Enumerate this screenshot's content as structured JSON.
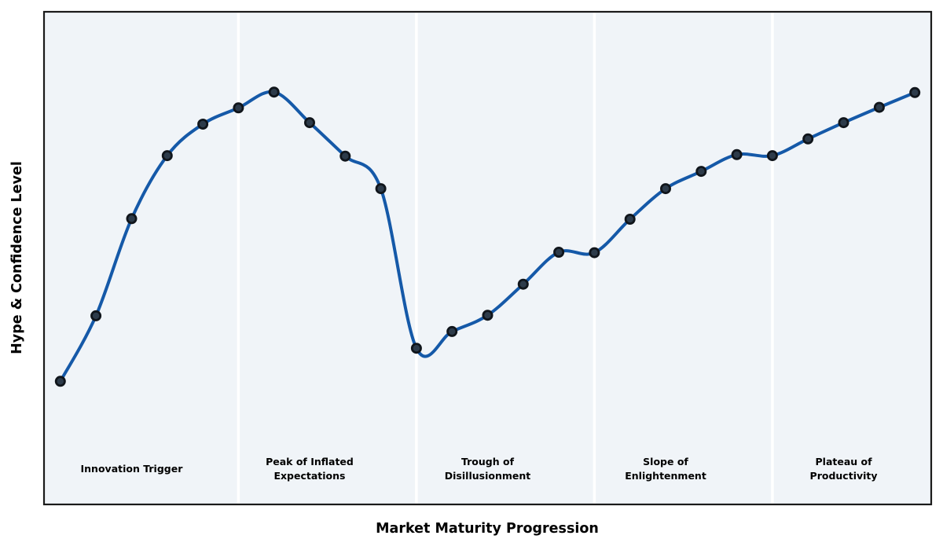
{
  "chart_data": {
    "type": "line",
    "title": "",
    "xlabel": "Market Maturity Progression",
    "ylabel": "Hype & Confidence Level",
    "x": [
      0,
      1,
      2,
      3,
      4,
      5,
      6,
      7,
      8,
      9,
      10,
      11,
      12,
      13,
      14,
      15,
      16,
      17,
      18,
      19,
      20,
      21,
      22,
      23,
      24
    ],
    "values": [
      25,
      38.3,
      58,
      70.8,
      77.2,
      80.5,
      83.7,
      77.5,
      70.7,
      64.1,
      31.7,
      35.1,
      38.4,
      44.7,
      51.2,
      51.1,
      57.9,
      64.1,
      67.6,
      71,
      70.8,
      74.2,
      77.5,
      80.6,
      83.6
    ],
    "xlim": [
      -0.46,
      24.46
    ],
    "ylim": [
      0,
      100
    ],
    "grid": false,
    "legend": "none",
    "smooth_spline": true,
    "phase_boundaries_x": [
      5,
      10,
      15,
      20
    ],
    "phases": [
      {
        "label": "Innovation Trigger",
        "center_x": 2
      },
      {
        "label": "Peak of Inflated\nExpectations",
        "center_x": 7
      },
      {
        "label": "Trough of\nDisillusionment",
        "center_x": 12
      },
      {
        "label": "Slope of\nEnlightenment",
        "center_x": 17
      },
      {
        "label": "Plateau of\nProductivity",
        "center_x": 22
      }
    ],
    "colors": {
      "line": "#1559a8",
      "marker_fill": "#2d3b4a",
      "marker_edge": "#10151b",
      "plot_background": "#f0f4f8",
      "phase_separator": "#ffffff",
      "spine": "#1a1a1a",
      "text": "#000000",
      "page_background": "#ffffff"
    }
  }
}
